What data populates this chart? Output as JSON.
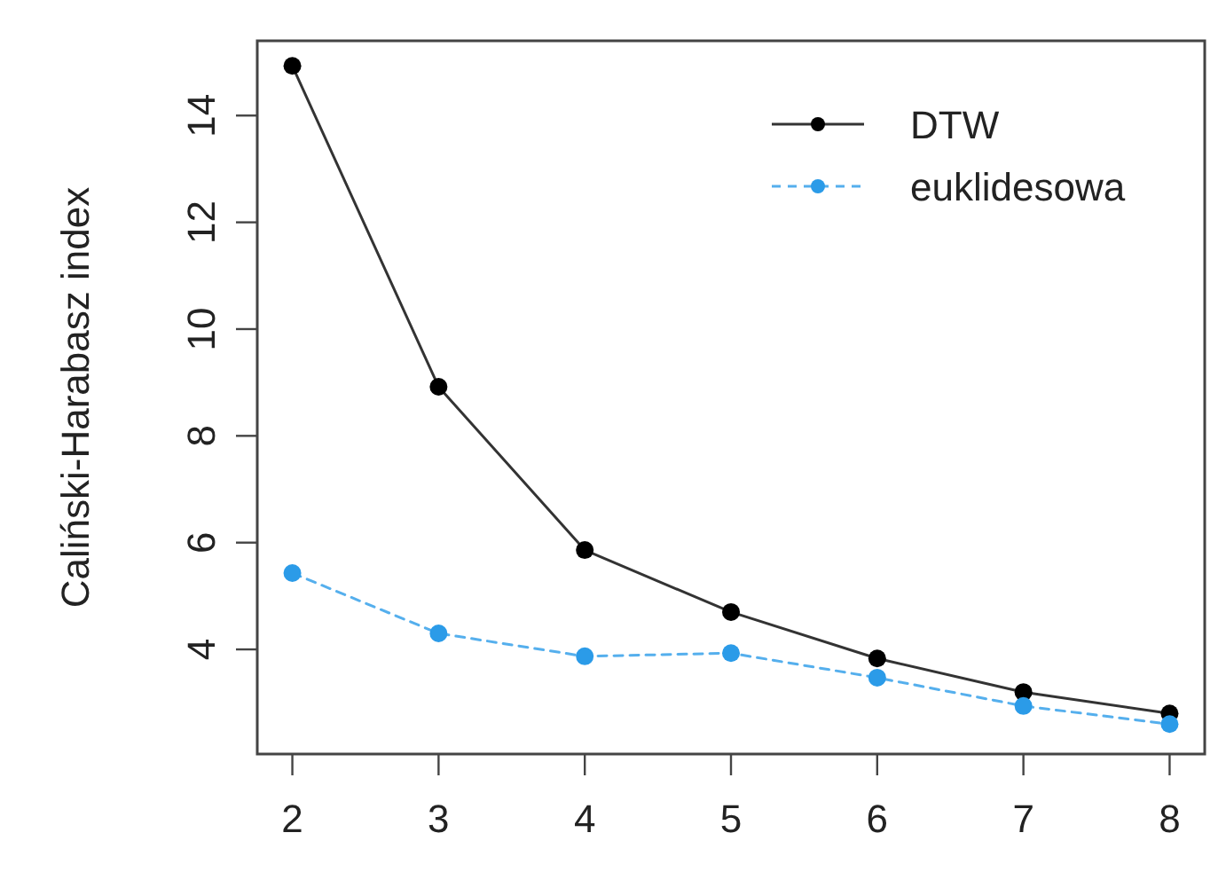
{
  "chart_data": {
    "type": "line",
    "ylabel": "Caliński-Harabasz index",
    "x": [
      2,
      3,
      4,
      5,
      6,
      7,
      8
    ],
    "series": [
      {
        "name": "DTW",
        "color": "#000000",
        "values": [
          14.93,
          8.92,
          5.86,
          4.7,
          3.83,
          3.2,
          2.8
        ],
        "line_style": "solid"
      },
      {
        "name": "euklidesowa",
        "color": "#2b9be8",
        "values": [
          5.43,
          4.3,
          3.87,
          3.93,
          3.47,
          2.94,
          2.6
        ],
        "line_style": "dashed"
      }
    ],
    "xlim": [
      1.76,
      8.24
    ],
    "ylim": [
      2.04,
      15.4
    ],
    "xticks": [
      2,
      3,
      4,
      5,
      6,
      7,
      8
    ],
    "yticks": [
      4,
      6,
      8,
      10,
      12,
      14
    ],
    "marker": "circle",
    "legend": "top right",
    "grid": false
  }
}
